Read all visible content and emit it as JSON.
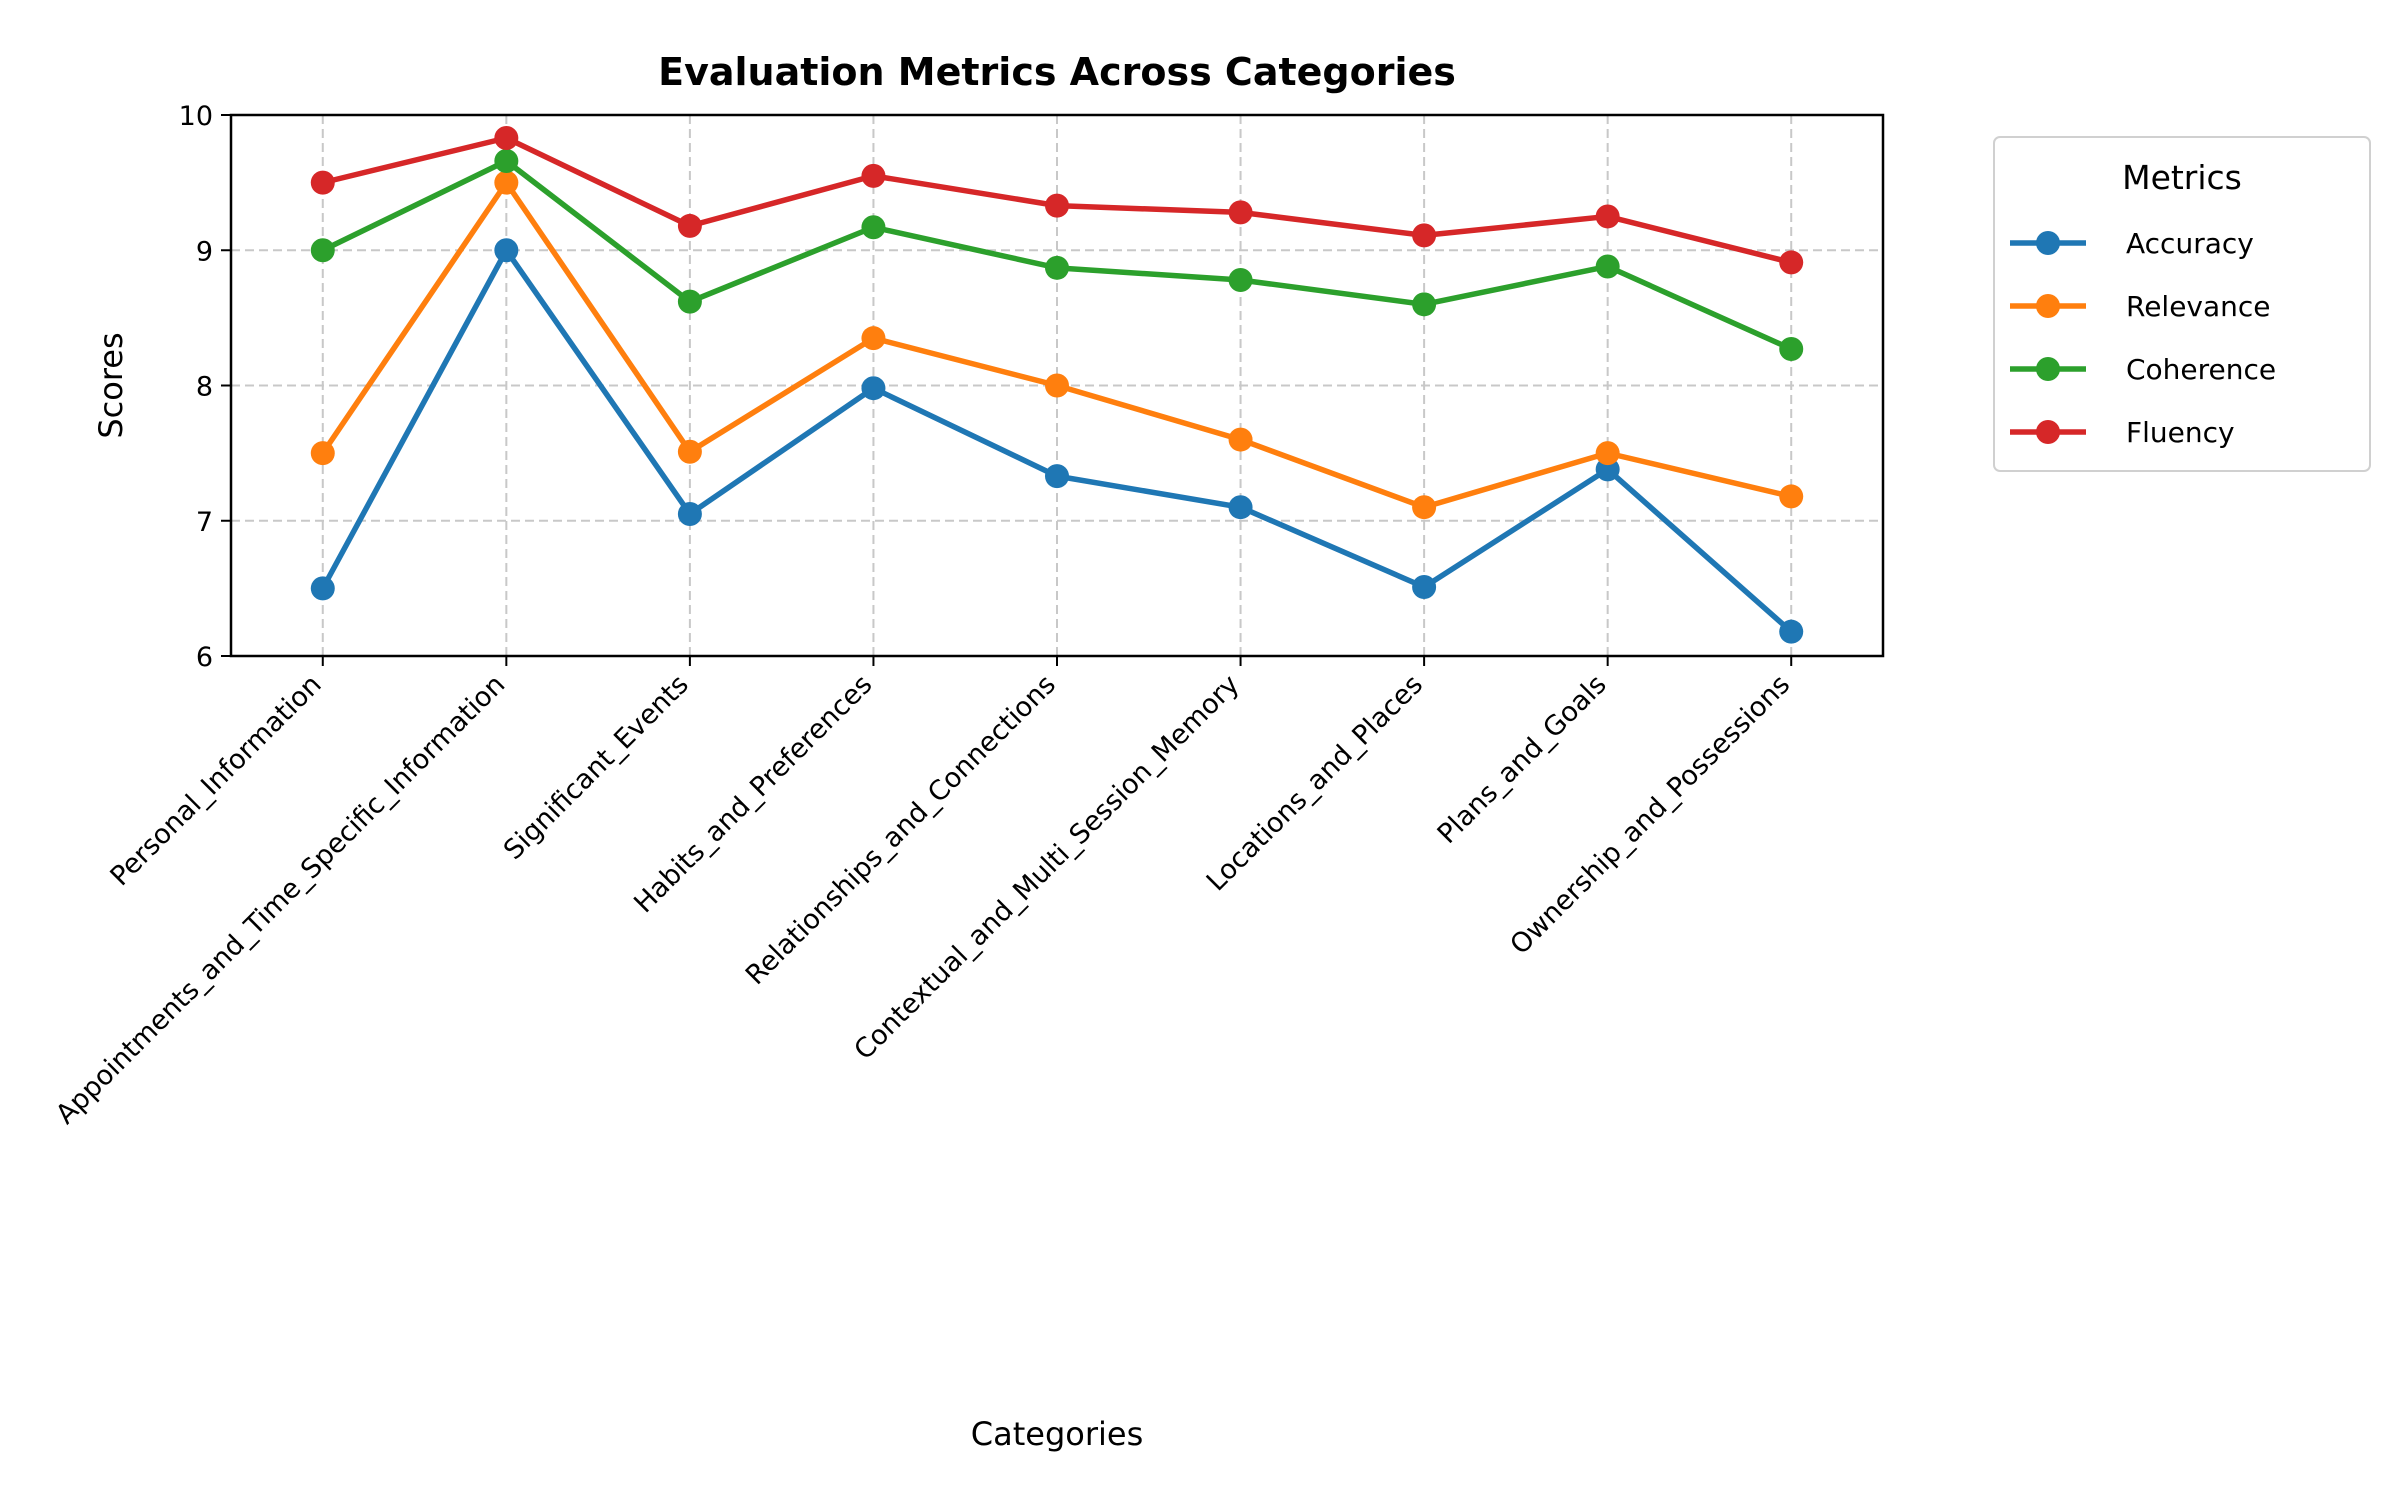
{
  "chart_data": {
    "type": "line",
    "title": "Evaluation Metrics Across Categories",
    "xlabel": "Categories",
    "ylabel": "Scores",
    "ylim": [
      6,
      10
    ],
    "yticks": [
      6,
      7,
      8,
      9,
      10
    ],
    "grid": true,
    "grid_style": "dashed",
    "legend_title": "Metrics",
    "legend_position": "outside-right-top",
    "categories": [
      "Personal_Information",
      "Appointments_and_Time_Specific_Information",
      "Significant_Events",
      "Habits_and_Preferences",
      "Relationships_and_Connections",
      "Contextual_and_Multi_Session_Memory",
      "Locations_and_Places",
      "Plans_and_Goals",
      "Ownership_and_Possessions"
    ],
    "series": [
      {
        "name": "Accuracy",
        "color": "#1f77b4",
        "values": [
          6.5,
          9.0,
          7.05,
          7.98,
          7.33,
          7.1,
          6.51,
          7.38,
          6.18
        ]
      },
      {
        "name": "Relevance",
        "color": "#ff7f0e",
        "values": [
          7.5,
          9.5,
          7.51,
          8.35,
          8.0,
          7.6,
          7.1,
          7.5,
          7.18
        ]
      },
      {
        "name": "Coherence",
        "color": "#2ca02c",
        "values": [
          9.0,
          9.66,
          8.62,
          9.17,
          8.87,
          8.78,
          8.6,
          8.88,
          8.27
        ]
      },
      {
        "name": "Fluency",
        "color": "#d62728",
        "values": [
          9.5,
          9.83,
          9.18,
          9.55,
          9.33,
          9.28,
          9.11,
          9.25,
          8.91
        ]
      }
    ]
  }
}
